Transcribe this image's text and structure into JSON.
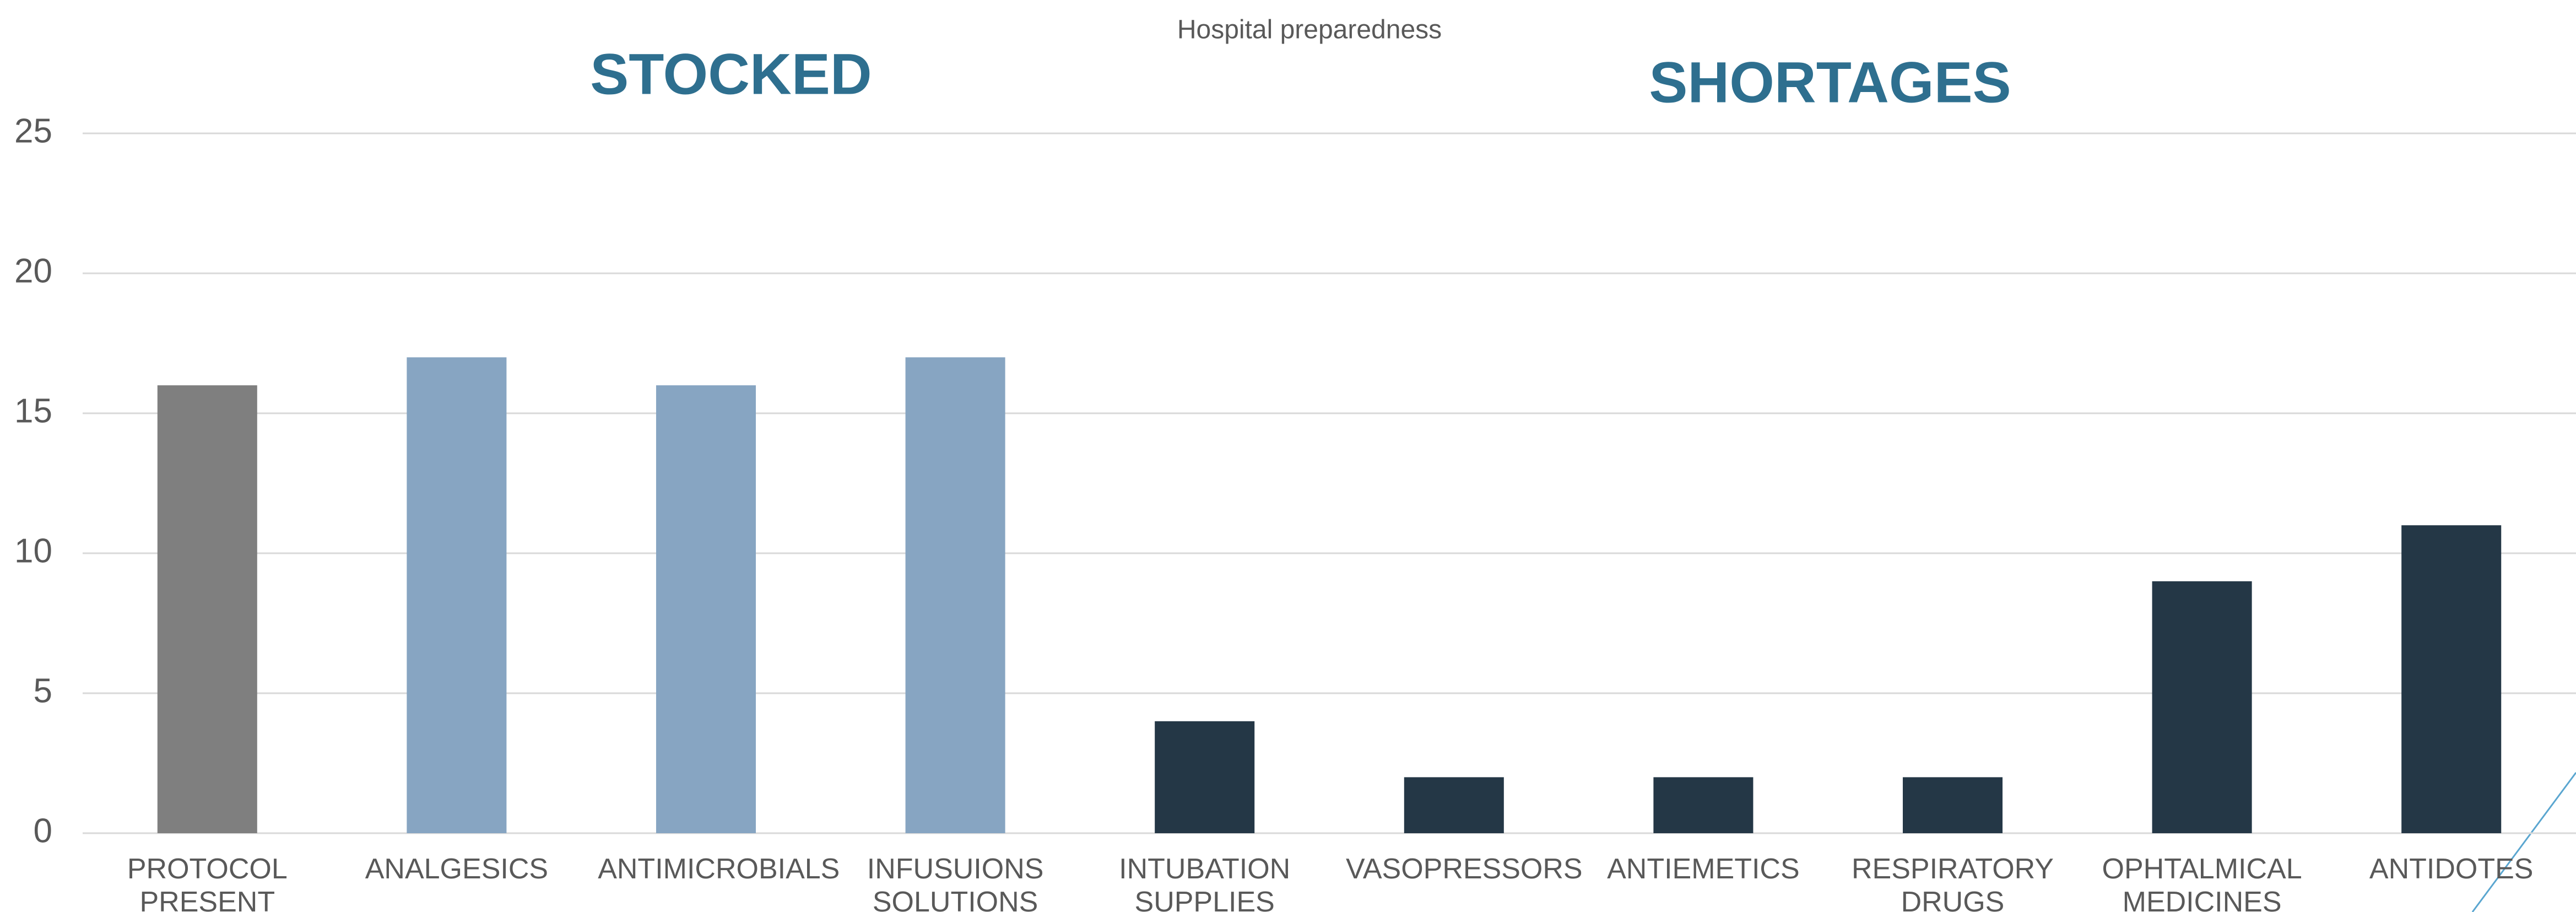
{
  "chart_data": {
    "type": "bar",
    "title": "Hospital preparedness",
    "annotations": [
      "STOCKED",
      "SHORTAGES"
    ],
    "categories": [
      "PROTOCOL PRESENT",
      "ANALGESICS",
      "ANTIMICROBIALS",
      "INFUSUIONS SOLUTIONS",
      "INTUBATION SUPPLIES",
      "VASOPRESSORS",
      "ANTIEMETICS",
      "RESPIRATORY DRUGS",
      "OPHTALMICAL MEDICINES",
      "ANTIDOTES"
    ],
    "values": [
      16,
      17,
      16,
      17,
      4,
      2,
      2,
      2,
      9,
      11
    ],
    "colors": [
      "#7f7f7f",
      "#87a5c2",
      "#87a5c2",
      "#87a5c2",
      "#243746",
      "#243746",
      "#243746",
      "#243746",
      "#243746",
      "#243746"
    ],
    "ylim": [
      0,
      25
    ],
    "yticks": [
      0,
      5,
      10,
      15,
      20,
      25
    ],
    "grid": true
  }
}
